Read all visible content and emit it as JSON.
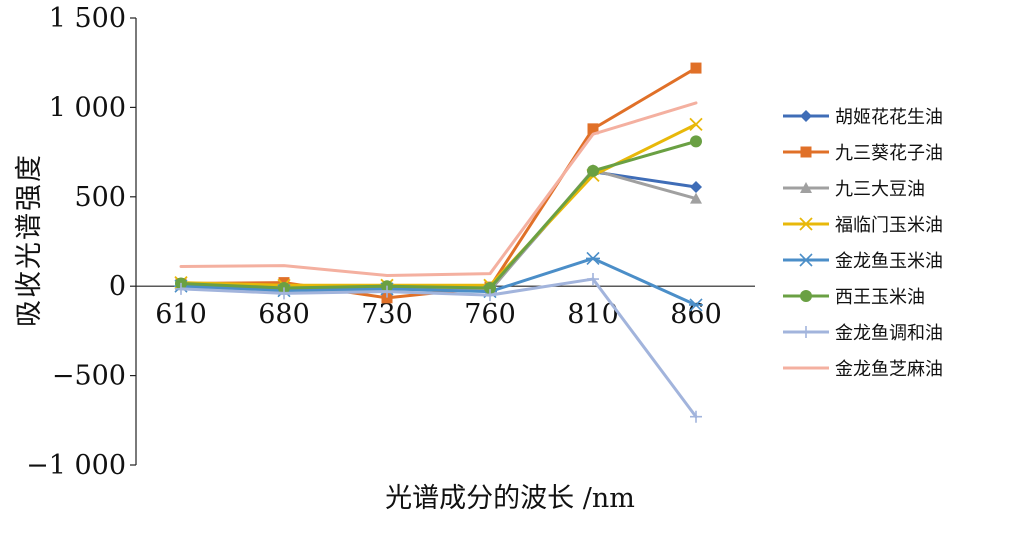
{
  "chart_data": {
    "type": "line",
    "title": "",
    "xlabel": "光谱成分的波长 /nm",
    "ylabel": "吸收光谱强度",
    "categories": [
      "610",
      "680",
      "730",
      "760",
      "810",
      "860"
    ],
    "ylim": [
      -1000,
      1500
    ],
    "yticks": [
      -1000,
      -500,
      0,
      500,
      1000,
      1500
    ],
    "ytick_labels": [
      "−1 000",
      "−500",
      "0",
      "500",
      "1 000",
      "1 500"
    ],
    "grid": false,
    "legend_position": "right",
    "series": [
      {
        "name": "胡姬花花生油",
        "color": "#3f6db7",
        "marker": "diamond",
        "values": [
          10,
          -15,
          -5,
          -20,
          640,
          555
        ]
      },
      {
        "name": "九三葵花子油",
        "color": "#e07028",
        "marker": "square",
        "values": [
          15,
          20,
          -65,
          -5,
          880,
          1220
        ]
      },
      {
        "name": "九三大豆油",
        "color": "#a0a0a0",
        "marker": "triangle",
        "values": [
          5,
          -20,
          0,
          -25,
          650,
          490
        ]
      },
      {
        "name": "福临门玉米油",
        "color": "#e8b80a",
        "marker": "x",
        "values": [
          20,
          5,
          5,
          5,
          620,
          905
        ]
      },
      {
        "name": "金龙鱼玉米油",
        "color": "#4b8ec8",
        "marker": "asterisk",
        "values": [
          0,
          -25,
          -15,
          -30,
          155,
          -105
        ]
      },
      {
        "name": "西王玉米油",
        "color": "#6aa043",
        "marker": "circle",
        "values": [
          15,
          -10,
          0,
          -10,
          645,
          810
        ]
      },
      {
        "name": "金龙鱼调和油",
        "color": "#a2b4dc",
        "marker": "plus",
        "values": [
          -15,
          -40,
          -30,
          -50,
          40,
          -730
        ]
      },
      {
        "name": "金龙鱼芝麻油",
        "color": "#f4b0a0",
        "marker": "none",
        "values": [
          110,
          115,
          60,
          70,
          850,
          1025
        ]
      }
    ]
  }
}
